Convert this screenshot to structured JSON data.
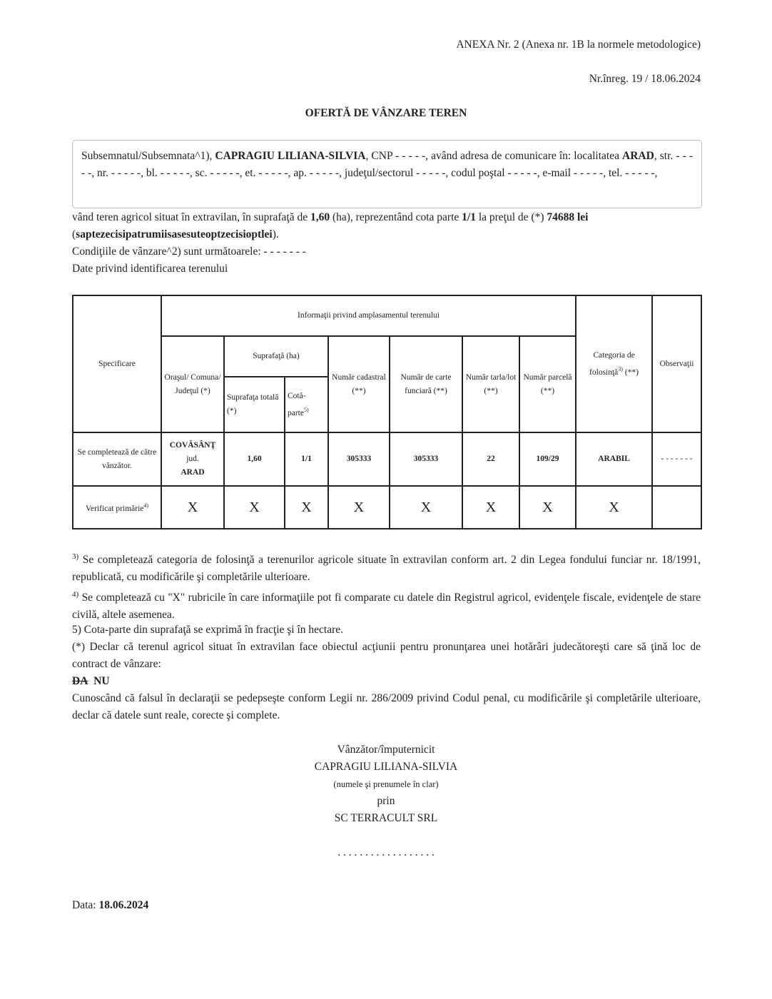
{
  "header": {
    "annex": "ANEXA Nr. 2 (Anexa nr. 1B la normele metodologice)",
    "registration": "Nr.înreg. 19 / 18.06.2024"
  },
  "title": "OFERTĂ DE VÂNZARE TEREN",
  "seller_box": {
    "p1": "Subsemnatul/Subsemnata^1), ",
    "name": "CAPRAGIU LILIANA-SILVIA",
    "p2": ", CNP - - - - -, având adresa de comunicare în: localitatea ",
    "city": "ARAD",
    "p3": ", str. - - - - -, nr. - - - - -, bl. - - - - -, sc. - - - - -, et. - - - - -, ap. - - - - -, judeţul/sectorul - - - - -, codul poştal - - - - -, e-mail - - - - -, tel. - - - - -,"
  },
  "offer": {
    "p1": "vând teren agricol situat în extravilan, în suprafaţă de ",
    "area": "1,60",
    "p2": " (ha), reprezentând cota parte ",
    "share": "1/1",
    "p3": " la preţul de (*) ",
    "price": "74688 lei",
    "p4": "(",
    "price_words": "saptezecisipatrumiisasesuteoptzecisioptlei",
    "p5": ").",
    "conditions": "Condiţiile de vânzare^2) sunt următoarele: - - - - - - -",
    "identification": "Date privind identificarea terenului"
  },
  "table": {
    "h_spec": "Specificare",
    "h_info": "Informaţii privind amplasamentul terenului",
    "h_city": "Oraşul/ Comuna/ Judeţul (*)",
    "h_area": "Suprafaţă (ha)",
    "h_total": "Suprafaţa totală (*)",
    "h_share": "Cotă-parte",
    "h_share_sup": "5)",
    "h_cad": "Număr cadastral (**)",
    "h_cf": "Număr de carte funciară (**)",
    "h_tarla": "Număr tarla/lot (**)",
    "h_parcel": "Număr parcelă (**)",
    "h_cat": "Categoria de folosinţă",
    "h_cat_sup": "3)",
    "h_cat_tail": " (**)",
    "h_obs": "Observaţii",
    "row1": {
      "label": "Se completează de către vânzător.",
      "city": "COVĂSÂNŢ",
      "jud": "jud.",
      "county": "ARAD",
      "total": "1,60",
      "share": "1/1",
      "cad": "305333",
      "cf": "305333",
      "tarla": "22",
      "parcel": "109/29",
      "cat": "ARABIL",
      "obs": "- - - - - - -"
    },
    "row2": {
      "label": "Verificat primărie",
      "label_sup": "4)",
      "marks": [
        "X",
        "X",
        "X",
        "X",
        "X",
        "X",
        "X",
        "X"
      ]
    }
  },
  "footnotes": {
    "f3_sup": "3)",
    "f3": " Se completează categoria de folosinţă a terenurilor agricole situate în extravilan conform art. 2 din Legea fondului funciar nr. 18/1991, republicată, cu modificările şi completările ulterioare.",
    "f4_sup": "4)",
    "f4": " Se completează cu \"X\" rubricile în care informaţiile pot fi comparate cu datele din Registrul agricol, evidenţele fiscale, evidenţele de stare civilă, altele asemenea.",
    "f5": "5) Cota-parte din suprafaţă se exprimă în fracţie şi în hectare.",
    "fstar": "(*) Declar că terenul agricol situat în extravilan face obiectul acţiunii pentru pronunţarea unei hotărâri judecătoreşti care să ţină loc de contract de vânzare:",
    "da": "DA",
    "nu": "NU",
    "declaration": "Cunoscând că falsul în declaraţii se pedepseşte conform Legii nr. 286/2009 privind Codul penal, cu modificările şi completările ulterioare, declar că datele sunt reale, corecte şi complete."
  },
  "signature": {
    "role": "Vânzător/împuternicit",
    "name": "CAPRAGIU LILIANA-SILVIA",
    "hint": "(numele şi prenumele în clar)",
    "via": "prin",
    "company": "SC TERRACULT SRL",
    "dots": ". . . . . . . . . . . . . . . . . ."
  },
  "date": {
    "label": "Data: ",
    "value": "18.06.2024"
  }
}
